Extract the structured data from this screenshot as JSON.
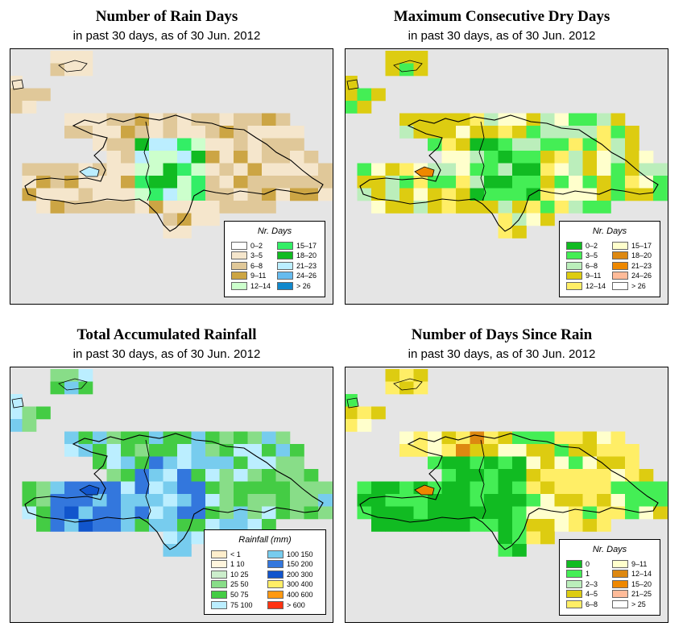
{
  "colors": {
    "background": "#e5e5e5",
    "rain": [
      "#ffffff",
      "#f5e6cc",
      "#e0c899",
      "#cca544",
      "#ccffcc",
      "#33ee66",
      "#11bb22",
      "#bbeeff",
      "#66bbee",
      "#1188cc"
    ],
    "dry": [
      "#11bb22",
      "#44ee55",
      "#bbeebb",
      "#ddcc11",
      "#ffee66",
      "#ffffcc",
      "#dd8811",
      "#ee8800",
      "#ffbb99",
      "#ffffff"
    ],
    "rainfall": [
      "#ffeecc",
      "#fff5dd",
      "#cceecc",
      "#88dd88",
      "#44cc44",
      "#bbeeff",
      "#77ccee",
      "#3377dd",
      "#1155cc",
      "#ffee66",
      "#ff9911",
      "#ff3311"
    ],
    "since": [
      "#11bb22",
      "#44ee55",
      "#bbeebb",
      "#ddcc11",
      "#ffee66",
      "#ffffcc",
      "#dd8811",
      "#ee8800",
      "#ffbb99",
      "#ffffff"
    ]
  },
  "panels": [
    {
      "id": "rain-days",
      "title": "Number of Rain Days",
      "subtitle": "in past 30 days, as of  30 Jun. 2012",
      "legend": {
        "title": "Nr. Days",
        "items": [
          {
            "label": "0–2",
            "color": "#ffffff"
          },
          {
            "label": "3–5",
            "color": "#f5e6cc"
          },
          {
            "label": "6–8",
            "color": "#e0c899"
          },
          {
            "label": "9–11",
            "color": "#cca544"
          },
          {
            "label": "12–14",
            "color": "#ccffcc"
          },
          {
            "label": "15–17",
            "color": "#33ee66"
          },
          {
            "label": "18–20",
            "color": "#11bb22"
          },
          {
            "label": "21–23",
            "color": "#bbeeff"
          },
          {
            "label": "24–26",
            "color": "#66bbee"
          },
          {
            "label": "> 26",
            "color": "#1188cc"
          }
        ]
      }
    },
    {
      "id": "dry-days",
      "title": "Maximum Consecutive Dry Days",
      "subtitle": "in past 30 days, as of  30 Jun. 2012",
      "legend": {
        "title": "Nr. Days",
        "items": [
          {
            "label": "0–2",
            "color": "#11bb22"
          },
          {
            "label": "3–5",
            "color": "#44ee55"
          },
          {
            "label": "6–8",
            "color": "#bbeebb"
          },
          {
            "label": "9–11",
            "color": "#ddcc11"
          },
          {
            "label": "12–14",
            "color": "#ffee66"
          },
          {
            "label": "15–17",
            "color": "#ffffcc"
          },
          {
            "label": "18–20",
            "color": "#dd8811"
          },
          {
            "label": "21–23",
            "color": "#ee8800"
          },
          {
            "label": "24–26",
            "color": "#ffbb99"
          },
          {
            "label": "> 26",
            "color": "#ffffff"
          }
        ]
      }
    },
    {
      "id": "rainfall",
      "title": "Total Accumulated Rainfall",
      "subtitle": "in past 30 days, as of  30 Jun. 2012",
      "legend": {
        "title": "Rainfall (mm)",
        "items": [
          {
            "label": "< 1",
            "color": "#ffeecc"
          },
          {
            "label": "1    10",
            "color": "#fff5dd"
          },
          {
            "label": "10    25",
            "color": "#cceecc"
          },
          {
            "label": "25    50",
            "color": "#88dd88"
          },
          {
            "label": "50    75",
            "color": "#44cc44"
          },
          {
            "label": "75  100",
            "color": "#bbeeff"
          },
          {
            "label": "100  150",
            "color": "#77ccee"
          },
          {
            "label": "150  200",
            "color": "#3377dd"
          },
          {
            "label": "200  300",
            "color": "#1155cc"
          },
          {
            "label": "300  400",
            "color": "#ffee66"
          },
          {
            "label": "400  600",
            "color": "#ff9911"
          },
          {
            "label": "> 600",
            "color": "#ff3311"
          }
        ]
      }
    },
    {
      "id": "since-rain",
      "title": "Number of Days Since Rain",
      "subtitle": "in past 30 days, as of  30 Jun. 2012",
      "legend": {
        "title": "Nr. Days",
        "items": [
          {
            "label": "0",
            "color": "#11bb22"
          },
          {
            "label": "1",
            "color": "#44ee55"
          },
          {
            "label": "2–3",
            "color": "#bbeebb"
          },
          {
            "label": "4–5",
            "color": "#ddcc11"
          },
          {
            "label": "6–8",
            "color": "#ffee66"
          },
          {
            "label": "9–11",
            "color": "#ffffcc"
          },
          {
            "label": "12–14",
            "color": "#dd8811"
          },
          {
            "label": "15–20",
            "color": "#ee8800"
          },
          {
            "label": "21–25",
            "color": "#ffbb99"
          },
          {
            "label": "> 25",
            "color": "#ffffff"
          }
        ]
      }
    }
  ]
}
